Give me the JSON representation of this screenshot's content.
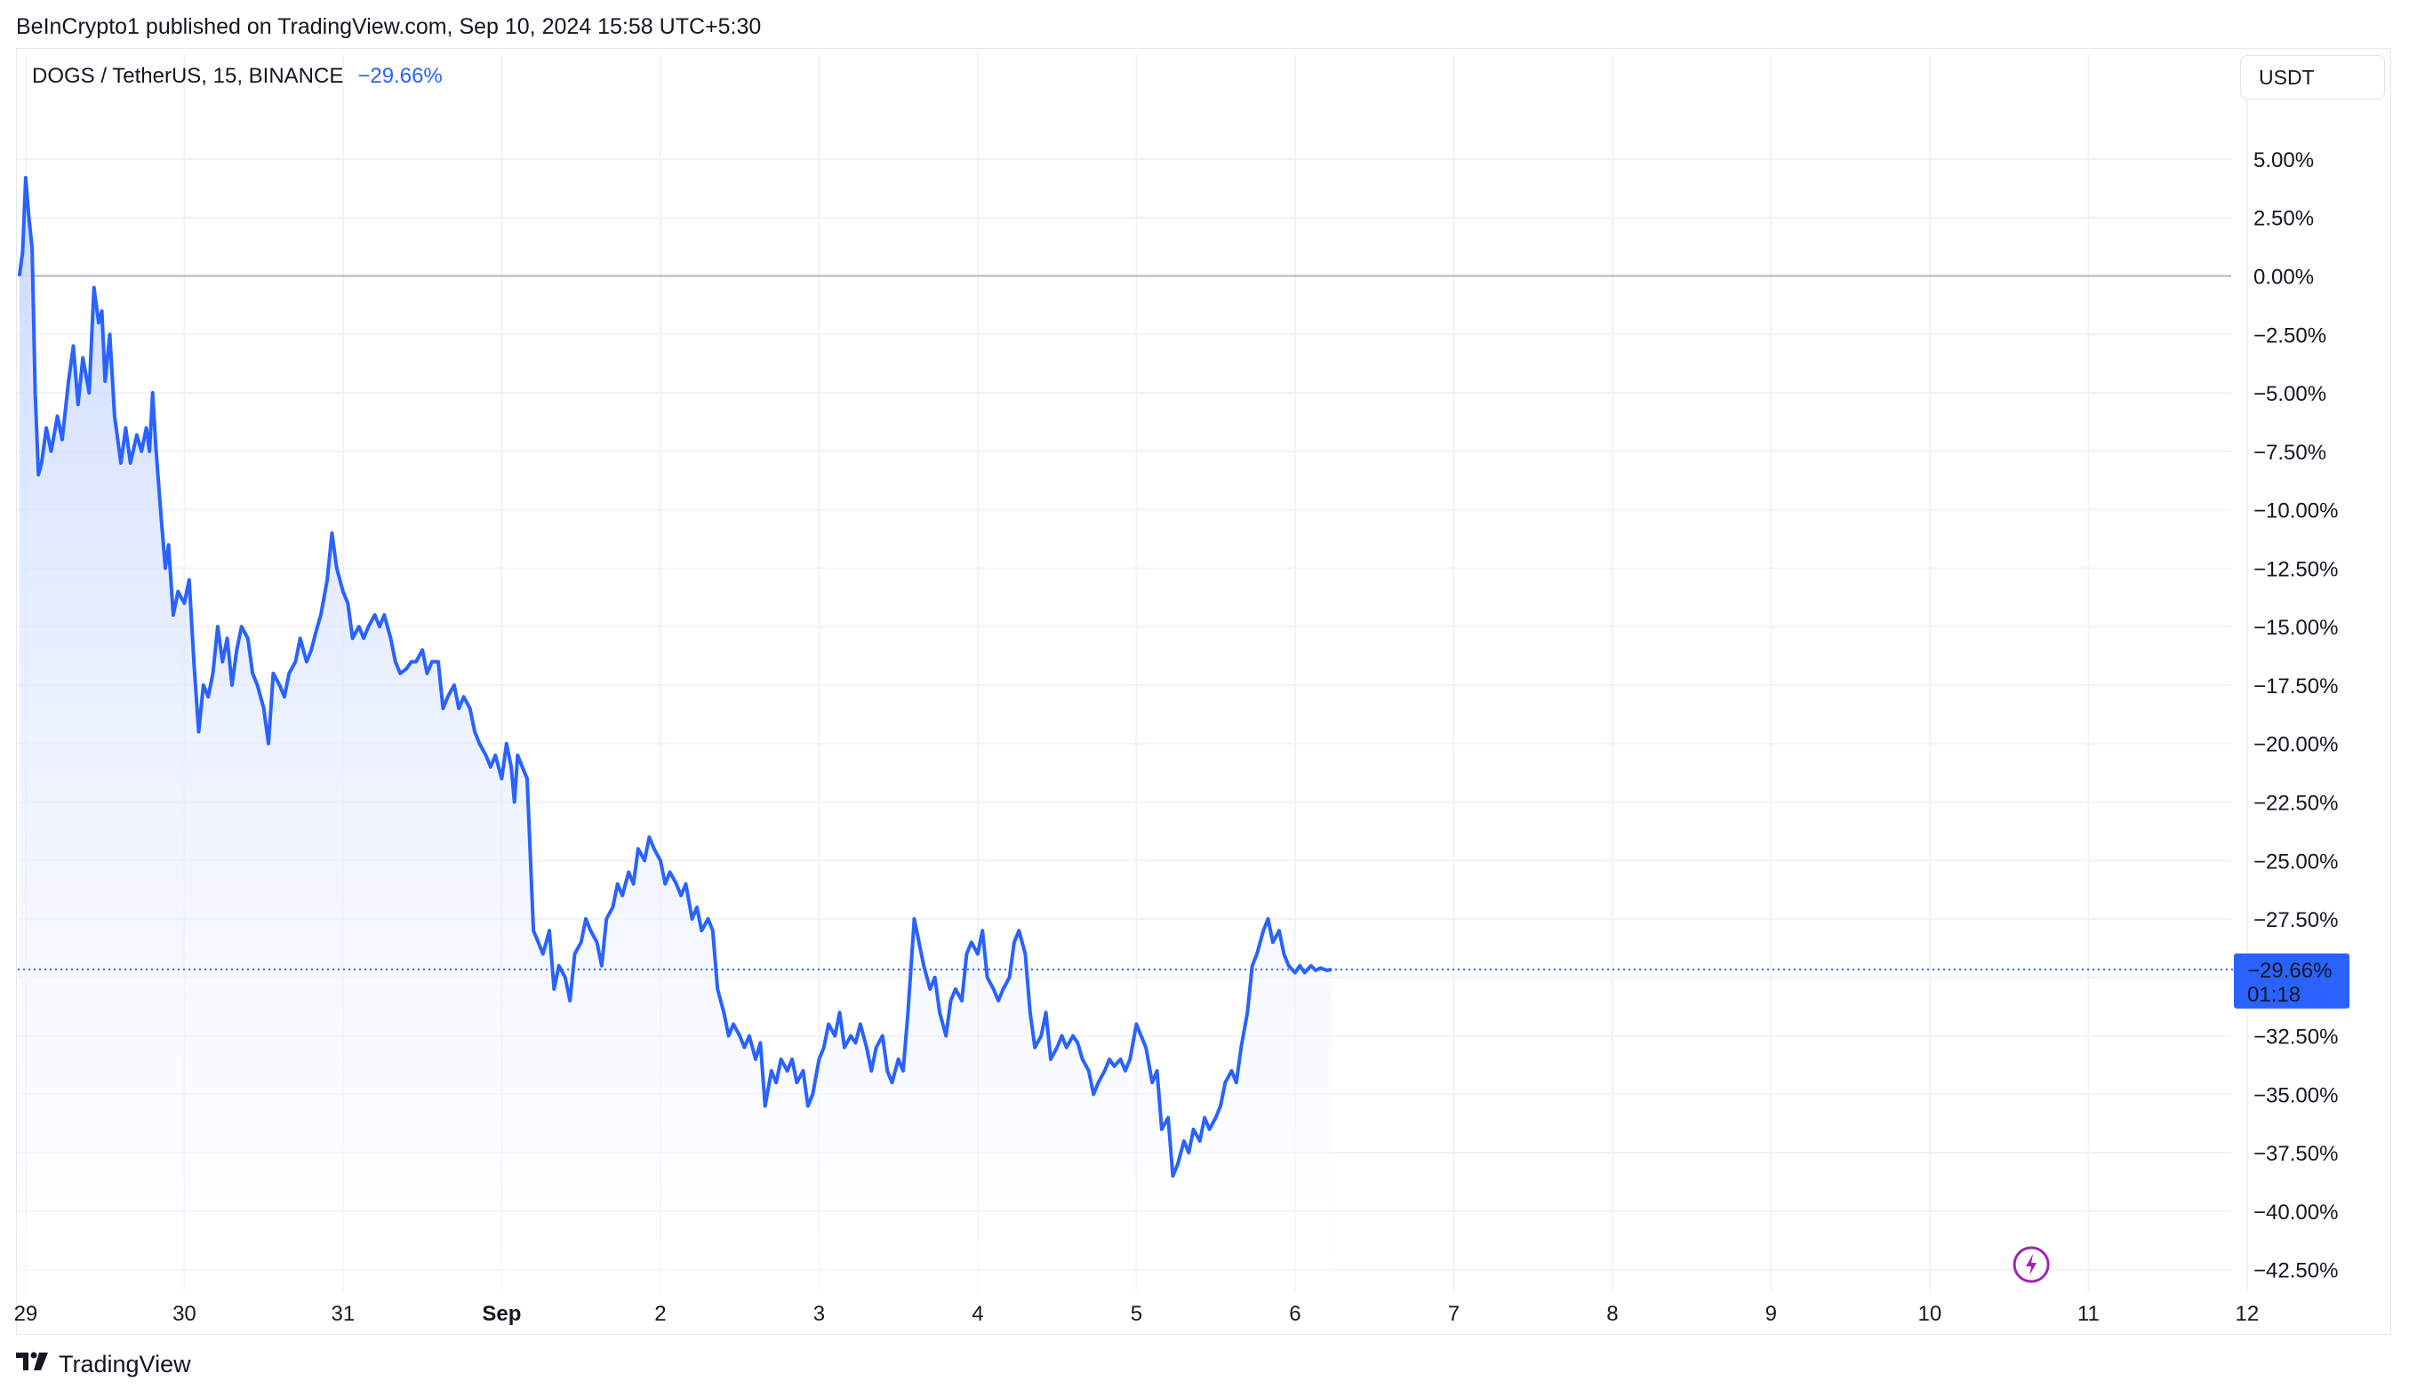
{
  "header": {
    "publisher_line": "BeInCrypto1 published on TradingView.com, Sep 10, 2024 15:58 UTC+5:30"
  },
  "legend": {
    "symbol": "DOGS / TetherUS, 15, BINANCE",
    "change": "−29.66%"
  },
  "currency_button": {
    "label": "USDT"
  },
  "last_price_label": {
    "value": "−29.66%",
    "countdown": "01:18"
  },
  "footer": {
    "brand": "TradingView"
  },
  "colors": {
    "line": "#2962ff",
    "fill_top": "#c7d6ff",
    "fill_bottom": "#ffffff",
    "grid": "#f0f3fa",
    "zero_line": "#b2b5be",
    "label_bg": "#2962ff"
  },
  "icons": {
    "brand_logo": "tradingview-logo-icon",
    "flash_marker": "lightning-icon"
  },
  "chart_data": {
    "type": "area",
    "title": "",
    "xlabel": "",
    "ylabel": "",
    "y_unit": "%",
    "ylim": [
      -43.5,
      8
    ],
    "x_range": [
      28.95,
      42.9
    ],
    "y_ticks": [
      "5.00%",
      "2.50%",
      "0.00%",
      "−2.50%",
      "−5.00%",
      "−7.50%",
      "−10.00%",
      "−12.50%",
      "−15.00%",
      "−17.50%",
      "−20.00%",
      "−22.50%",
      "−25.00%",
      "−27.50%",
      "−30.00%",
      "−32.50%",
      "−35.00%",
      "−37.50%",
      "−40.00%",
      "−42.50%"
    ],
    "y_tick_values": [
      5,
      2.5,
      0,
      -2.5,
      -5,
      -7.5,
      -10,
      -12.5,
      -15,
      -17.5,
      -20,
      -22.5,
      -25,
      -27.5,
      -30,
      -32.5,
      -35,
      -37.5,
      -40,
      -42.5
    ],
    "x_ticks": [
      {
        "label": "29",
        "day": 29
      },
      {
        "label": "30",
        "day": 30
      },
      {
        "label": "31",
        "day": 31
      },
      {
        "label": "Sep",
        "day": 32
      },
      {
        "label": "2",
        "day": 33
      },
      {
        "label": "3",
        "day": 34
      },
      {
        "label": "4",
        "day": 35
      },
      {
        "label": "5",
        "day": 36
      },
      {
        "label": "6",
        "day": 37
      },
      {
        "label": "7",
        "day": 38
      },
      {
        "label": "8",
        "day": 39
      },
      {
        "label": "9",
        "day": 40
      },
      {
        "label": "10",
        "day": 41
      },
      {
        "label": "11",
        "day": 42
      },
      {
        "label": "12",
        "day": 43
      }
    ],
    "grid": true,
    "series": [
      {
        "points": [
          [
            28.96,
            0.0
          ],
          [
            28.98,
            1.0
          ],
          [
            29.0,
            4.2
          ],
          [
            29.02,
            2.5
          ],
          [
            29.04,
            1.2
          ],
          [
            29.06,
            -5.0
          ],
          [
            29.08,
            -8.5
          ],
          [
            29.1,
            -8.0
          ],
          [
            29.13,
            -6.5
          ],
          [
            29.16,
            -7.5
          ],
          [
            29.2,
            -6.0
          ],
          [
            29.23,
            -7.0
          ],
          [
            29.27,
            -4.5
          ],
          [
            29.3,
            -3.0
          ],
          [
            29.33,
            -5.5
          ],
          [
            29.36,
            -3.5
          ],
          [
            29.4,
            -5.0
          ],
          [
            29.43,
            -0.5
          ],
          [
            29.46,
            -2.0
          ],
          [
            29.48,
            -1.5
          ],
          [
            29.5,
            -4.5
          ],
          [
            29.53,
            -2.5
          ],
          [
            29.56,
            -6.0
          ],
          [
            29.6,
            -8.0
          ],
          [
            29.63,
            -6.5
          ],
          [
            29.66,
            -8.0
          ],
          [
            29.7,
            -6.8
          ],
          [
            29.73,
            -7.5
          ],
          [
            29.76,
            -6.5
          ],
          [
            29.78,
            -7.5
          ],
          [
            29.8,
            -5.0
          ],
          [
            29.82,
            -7.3
          ],
          [
            29.85,
            -10.0
          ],
          [
            29.88,
            -12.5
          ],
          [
            29.9,
            -11.5
          ],
          [
            29.93,
            -14.5
          ],
          [
            29.96,
            -13.5
          ],
          [
            30.0,
            -14.0
          ],
          [
            30.03,
            -13.0
          ],
          [
            30.06,
            -16.5
          ],
          [
            30.09,
            -19.5
          ],
          [
            30.12,
            -17.5
          ],
          [
            30.15,
            -18.0
          ],
          [
            30.18,
            -17.0
          ],
          [
            30.21,
            -15.0
          ],
          [
            30.24,
            -16.5
          ],
          [
            30.27,
            -15.5
          ],
          [
            30.3,
            -17.5
          ],
          [
            30.33,
            -16.0
          ],
          [
            30.36,
            -15.0
          ],
          [
            30.4,
            -15.5
          ],
          [
            30.43,
            -17.0
          ],
          [
            30.46,
            -17.5
          ],
          [
            30.5,
            -18.5
          ],
          [
            30.53,
            -20.0
          ],
          [
            30.56,
            -17.0
          ],
          [
            30.6,
            -17.5
          ],
          [
            30.63,
            -18.0
          ],
          [
            30.66,
            -17.0
          ],
          [
            30.7,
            -16.5
          ],
          [
            30.73,
            -15.5
          ],
          [
            30.77,
            -16.5
          ],
          [
            30.8,
            -16.0
          ],
          [
            30.83,
            -15.2
          ],
          [
            30.86,
            -14.5
          ],
          [
            30.9,
            -13.0
          ],
          [
            30.93,
            -11.0
          ],
          [
            30.96,
            -12.5
          ],
          [
            31.0,
            -13.5
          ],
          [
            31.03,
            -14.0
          ],
          [
            31.06,
            -15.5
          ],
          [
            31.1,
            -15.0
          ],
          [
            31.13,
            -15.5
          ],
          [
            31.16,
            -15.0
          ],
          [
            31.2,
            -14.5
          ],
          [
            31.23,
            -15.0
          ],
          [
            31.26,
            -14.5
          ],
          [
            31.3,
            -15.5
          ],
          [
            31.33,
            -16.5
          ],
          [
            31.36,
            -17.0
          ],
          [
            31.4,
            -16.8
          ],
          [
            31.43,
            -16.5
          ],
          [
            31.46,
            -16.5
          ],
          [
            31.5,
            -16.0
          ],
          [
            31.53,
            -17.0
          ],
          [
            31.56,
            -16.5
          ],
          [
            31.6,
            -16.5
          ],
          [
            31.63,
            -18.5
          ],
          [
            31.66,
            -18.0
          ],
          [
            31.7,
            -17.5
          ],
          [
            31.73,
            -18.5
          ],
          [
            31.76,
            -18.0
          ],
          [
            31.8,
            -18.5
          ],
          [
            31.83,
            -19.5
          ],
          [
            31.86,
            -20.0
          ],
          [
            31.9,
            -20.5
          ],
          [
            31.93,
            -21.0
          ],
          [
            31.96,
            -20.5
          ],
          [
            32.0,
            -21.5
          ],
          [
            32.03,
            -20.0
          ],
          [
            32.06,
            -21.0
          ],
          [
            32.08,
            -22.5
          ],
          [
            32.1,
            -20.5
          ],
          [
            32.13,
            -21.0
          ],
          [
            32.16,
            -21.5
          ],
          [
            32.2,
            -28.0
          ],
          [
            32.23,
            -28.5
          ],
          [
            32.26,
            -29.0
          ],
          [
            32.3,
            -28.0
          ],
          [
            32.33,
            -30.5
          ],
          [
            32.36,
            -29.5
          ],
          [
            32.4,
            -30.0
          ],
          [
            32.43,
            -31.0
          ],
          [
            32.46,
            -29.0
          ],
          [
            32.5,
            -28.5
          ],
          [
            32.53,
            -27.5
          ],
          [
            32.56,
            -28.0
          ],
          [
            32.6,
            -28.5
          ],
          [
            32.63,
            -29.5
          ],
          [
            32.66,
            -27.5
          ],
          [
            32.7,
            -27.0
          ],
          [
            32.73,
            -26.0
          ],
          [
            32.76,
            -26.5
          ],
          [
            32.8,
            -25.5
          ],
          [
            32.83,
            -26.0
          ],
          [
            32.86,
            -24.5
          ],
          [
            32.9,
            -25.0
          ],
          [
            32.93,
            -24.0
          ],
          [
            32.96,
            -24.5
          ],
          [
            33.0,
            -25.0
          ],
          [
            33.03,
            -26.0
          ],
          [
            33.06,
            -25.5
          ],
          [
            33.1,
            -26.0
          ],
          [
            33.13,
            -26.5
          ],
          [
            33.16,
            -26.0
          ],
          [
            33.2,
            -27.5
          ],
          [
            33.23,
            -27.0
          ],
          [
            33.26,
            -28.0
          ],
          [
            33.3,
            -27.5
          ],
          [
            33.33,
            -28.0
          ],
          [
            33.36,
            -30.5
          ],
          [
            33.4,
            -31.5
          ],
          [
            33.43,
            -32.5
          ],
          [
            33.46,
            -32.0
          ],
          [
            33.5,
            -32.5
          ],
          [
            33.53,
            -33.0
          ],
          [
            33.56,
            -32.5
          ],
          [
            33.6,
            -33.5
          ],
          [
            33.63,
            -32.8
          ],
          [
            33.66,
            -35.5
          ],
          [
            33.7,
            -34.0
          ],
          [
            33.73,
            -34.5
          ],
          [
            33.76,
            -33.5
          ],
          [
            33.8,
            -34.0
          ],
          [
            33.83,
            -33.5
          ],
          [
            33.86,
            -34.5
          ],
          [
            33.9,
            -34.0
          ],
          [
            33.93,
            -35.5
          ],
          [
            33.96,
            -35.0
          ],
          [
            34.0,
            -33.5
          ],
          [
            34.03,
            -33.0
          ],
          [
            34.06,
            -32.0
          ],
          [
            34.1,
            -32.5
          ],
          [
            34.13,
            -31.5
          ],
          [
            34.16,
            -33.0
          ],
          [
            34.2,
            -32.5
          ],
          [
            34.23,
            -32.8
          ],
          [
            34.26,
            -32.0
          ],
          [
            34.3,
            -33.0
          ],
          [
            34.33,
            -34.0
          ],
          [
            34.36,
            -33.0
          ],
          [
            34.4,
            -32.5
          ],
          [
            34.43,
            -34.0
          ],
          [
            34.46,
            -34.5
          ],
          [
            34.5,
            -33.5
          ],
          [
            34.53,
            -34.0
          ],
          [
            34.56,
            -31.5
          ],
          [
            34.6,
            -27.5
          ],
          [
            34.63,
            -28.5
          ],
          [
            34.66,
            -29.5
          ],
          [
            34.7,
            -30.5
          ],
          [
            34.73,
            -30.0
          ],
          [
            34.76,
            -31.5
          ],
          [
            34.8,
            -32.5
          ],
          [
            34.83,
            -31.0
          ],
          [
            34.86,
            -30.5
          ],
          [
            34.9,
            -31.0
          ],
          [
            34.93,
            -29.0
          ],
          [
            34.96,
            -28.5
          ],
          [
            35.0,
            -29.0
          ],
          [
            35.03,
            -28.0
          ],
          [
            35.06,
            -30.0
          ],
          [
            35.1,
            -30.5
          ],
          [
            35.13,
            -31.0
          ],
          [
            35.16,
            -30.5
          ],
          [
            35.2,
            -30.0
          ],
          [
            35.23,
            -28.5
          ],
          [
            35.26,
            -28.0
          ],
          [
            35.3,
            -29.0
          ],
          [
            35.33,
            -31.5
          ],
          [
            35.36,
            -33.0
          ],
          [
            35.4,
            -32.5
          ],
          [
            35.43,
            -31.5
          ],
          [
            35.46,
            -33.5
          ],
          [
            35.5,
            -33.0
          ],
          [
            35.53,
            -32.5
          ],
          [
            35.56,
            -33.0
          ],
          [
            35.6,
            -32.5
          ],
          [
            35.63,
            -32.8
          ],
          [
            35.66,
            -33.5
          ],
          [
            35.7,
            -34.0
          ],
          [
            35.73,
            -35.0
          ],
          [
            35.76,
            -34.5
          ],
          [
            35.8,
            -34.0
          ],
          [
            35.83,
            -33.5
          ],
          [
            35.86,
            -33.8
          ],
          [
            35.9,
            -33.5
          ],
          [
            35.93,
            -34.0
          ],
          [
            35.96,
            -33.5
          ],
          [
            36.0,
            -32.0
          ],
          [
            36.03,
            -32.5
          ],
          [
            36.06,
            -33.0
          ],
          [
            36.1,
            -34.5
          ],
          [
            36.13,
            -34.0
          ],
          [
            36.16,
            -36.5
          ],
          [
            36.2,
            -36.0
          ],
          [
            36.23,
            -38.5
          ],
          [
            36.26,
            -38.0
          ],
          [
            36.3,
            -37.0
          ],
          [
            36.33,
            -37.5
          ],
          [
            36.36,
            -36.5
          ],
          [
            36.4,
            -37.0
          ],
          [
            36.43,
            -36.0
          ],
          [
            36.46,
            -36.5
          ],
          [
            36.5,
            -36.0
          ],
          [
            36.53,
            -35.5
          ],
          [
            36.56,
            -34.5
          ],
          [
            36.6,
            -34.0
          ],
          [
            36.63,
            -34.5
          ],
          [
            36.66,
            -33.0
          ],
          [
            36.7,
            -31.5
          ],
          [
            36.73,
            -29.5
          ],
          [
            36.76,
            -29.0
          ],
          [
            36.8,
            -28.0
          ],
          [
            36.83,
            -27.5
          ],
          [
            36.86,
            -28.5
          ],
          [
            36.9,
            -28.0
          ],
          [
            36.93,
            -29.0
          ],
          [
            36.96,
            -29.5
          ],
          [
            37.0,
            -29.8
          ],
          [
            37.03,
            -29.5
          ],
          [
            37.06,
            -29.8
          ],
          [
            37.1,
            -29.5
          ],
          [
            37.13,
            -29.7
          ],
          [
            37.16,
            -29.6
          ],
          [
            37.2,
            -29.7
          ],
          [
            37.23,
            -29.66
          ]
        ]
      }
    ]
  }
}
